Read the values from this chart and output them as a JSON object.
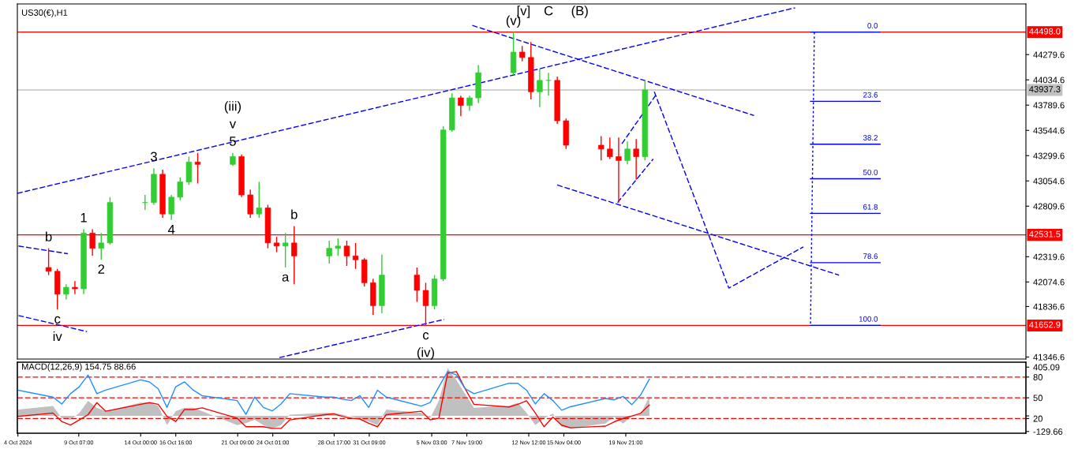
{
  "chart_data": [
    {
      "type": "candlestick",
      "title": "US30(€),H1",
      "x": [
        "2024-10-07T00:00",
        "2024-10-07T16:00",
        "2024-10-08T08:00",
        "2024-10-09T00:00",
        "2024-10-09T16:00",
        "2024-10-10T08:00",
        "2024-10-11T00:00",
        "2024-10-11T16:00",
        "2024-10-14T08:00",
        "2024-10-15T00:00",
        "2024-10-15T16:00",
        "2024-10-16T08:00",
        "2024-10-17T00:00",
        "2024-10-17T16:00",
        "2024-10-18T08:00",
        "2024-10-21T00:00",
        "2024-10-21T16:00",
        "2024-10-22T08:00",
        "2024-10-23T00:00",
        "2024-10-23T16:00",
        "2024-10-24T08:00",
        "2024-10-25T00:00",
        "2024-10-25T16:00",
        "2024-10-28T08:00",
        "2024-10-29T00:00",
        "2024-10-29T16:00",
        "2024-10-30T08:00",
        "2024-10-31T00:00",
        "2024-10-31T16:00",
        "2024-11-01T08:00",
        "2024-11-04T00:00",
        "2024-11-04T16:00",
        "2024-11-05T08:00",
        "2024-11-06T00:00",
        "2024-11-06T16:00",
        "2024-11-07T08:00",
        "2024-11-08T00:00",
        "2024-11-08T16:00",
        "2024-11-11T08:00",
        "2024-11-12T00:00",
        "2024-11-12T16:00",
        "2024-11-13T08:00",
        "2024-11-14T00:00",
        "2024-11-14T16:00",
        "2024-11-15T08:00",
        "2024-11-18T00:00",
        "2024-11-18T16:00",
        "2024-11-19T08:00",
        "2024-11-20T00:00",
        "2024-11-20T16:00",
        "2024-11-21T08:00"
      ],
      "ohlc": [
        [
          42215,
          42401,
          42141,
          42178
        ],
        [
          42178,
          42201,
          41808,
          41956
        ],
        [
          41956,
          42053,
          41904,
          42023
        ],
        [
          42023,
          42082,
          41956,
          42008
        ],
        [
          42008,
          42586,
          41956,
          42549
        ],
        [
          42549,
          42586,
          42327,
          42401
        ],
        [
          42401,
          42549,
          42290,
          42453
        ],
        [
          42453,
          42897,
          42438,
          42845
        ],
        [
          42845,
          42919,
          42771,
          42845
        ],
        [
          42845,
          43178,
          42823,
          43119
        ],
        [
          43119,
          43164,
          42697,
          42734
        ],
        [
          42734,
          42919,
          42675,
          42897
        ],
        [
          42897,
          43090,
          42867,
          43045
        ],
        [
          43045,
          43290,
          43016,
          43238
        ],
        [
          43238,
          43327,
          43030,
          43215
        ],
        [
          43215,
          43327,
          43200,
          43290
        ],
        [
          43290,
          43312,
          42897,
          42919
        ],
        [
          42919,
          42971,
          42697,
          42734
        ],
        [
          42734,
          43045,
          42697,
          42793
        ],
        [
          42793,
          42823,
          42401,
          42453
        ],
        [
          42453,
          42512,
          42364,
          42423
        ],
        [
          42423,
          42549,
          42215,
          42453
        ],
        [
          42453,
          42616,
          42053,
          42327
        ],
        [
          42327,
          42475,
          42253,
          42401
        ],
        [
          42401,
          42497,
          42327,
          42423
        ],
        [
          42423,
          42475,
          42230,
          42327
        ],
        [
          42327,
          42453,
          42201,
          42290
        ],
        [
          42290,
          42305,
          42030,
          42067
        ],
        [
          42067,
          42105,
          41756,
          41845
        ],
        [
          41845,
          42341,
          41771,
          42141
        ],
        [
          42141,
          42215,
          41882,
          41993
        ],
        [
          41993,
          42067,
          41652.9,
          41845
        ],
        [
          41845,
          42141,
          41808,
          42104
        ],
        [
          42104,
          43586,
          42082,
          43549
        ],
        [
          43549,
          43904,
          43534,
          43860
        ],
        [
          43860,
          43882,
          43682,
          43786
        ],
        [
          43786,
          43882,
          43734,
          43860
        ],
        [
          43860,
          44178,
          43808,
          44104
        ],
        [
          44104,
          44498,
          44082,
          44304
        ],
        [
          44304,
          44364,
          44215,
          44252
        ],
        [
          44252,
          44401,
          43845,
          43919
        ],
        [
          43919,
          44141,
          43771,
          44030
        ],
        [
          44030,
          44104,
          43882,
          44030
        ],
        [
          44030,
          44067,
          43608,
          43638
        ],
        [
          43638,
          43660,
          43364,
          43401
        ],
        [
          43401,
          43490,
          43253,
          43364
        ],
        [
          43364,
          43475,
          43267,
          43290
        ],
        [
          43290,
          43475,
          42845,
          43253
        ],
        [
          43253,
          43438,
          43215,
          43364
        ],
        [
          43364,
          43460,
          43067,
          43290
        ],
        [
          43290,
          44030,
          43253,
          43937.3
        ]
      ],
      "colors": [
        "#ff0000",
        "#ff0000",
        "#32cd32",
        "#ff0000",
        "#32cd32",
        "#ff0000",
        "#32cd32",
        "#32cd32",
        "#32cd32",
        "#32cd32",
        "#ff0000",
        "#32cd32",
        "#32cd32",
        "#32cd32",
        "#ff0000",
        "#32cd32",
        "#ff0000",
        "#ff0000",
        "#32cd32",
        "#ff0000",
        "#ff0000",
        "#32cd32",
        "#ff0000",
        "#32cd32",
        "#32cd32",
        "#ff0000",
        "#ff0000",
        "#ff0000",
        "#ff0000",
        "#32cd32",
        "#ff0000",
        "#ff0000",
        "#32cd32",
        "#32cd32",
        "#32cd32",
        "#ff0000",
        "#32cd32",
        "#32cd32",
        "#32cd32",
        "#ff0000",
        "#ff0000",
        "#32cd32",
        "#32cd32",
        "#ff0000",
        "#ff0000",
        "#ff0000",
        "#ff0000",
        "#ff0000",
        "#32cd32",
        "#ff0000",
        "#32cd32"
      ],
      "series": [
        {
          "type": "line",
          "color": "#0000ff",
          "line_style": "dashed",
          "x": [
            "2024-10-04T15:00",
            "2024-12-02T18:00"
          ],
          "values": [
            42934,
            44734
          ]
        },
        {
          "type": "line",
          "color": "#0000ff",
          "line_style": "dashed",
          "x": [
            "2024-10-04T17:00",
            "2024-10-08T11:00"
          ],
          "values": [
            42423,
            42349
          ]
        },
        {
          "type": "line",
          "color": "#0000ff",
          "line_style": "dashed",
          "x": [
            "2024-10-04T17:00",
            "2024-10-09T22:00"
          ],
          "values": [
            41749,
            41593
          ]
        },
        {
          "type": "line",
          "color": "#0000ff",
          "line_style": "dashed",
          "x": [
            "2024-10-24T13:00",
            "2024-11-06T02:00"
          ],
          "values": [
            41341,
            41712
          ]
        },
        {
          "type": "line",
          "color": "#0000ff",
          "line_style": "dashed",
          "x": [
            "2024-11-08T05:00",
            "2024-11-29T15:00"
          ],
          "values": [
            44563,
            43689
          ]
        },
        {
          "type": "line",
          "color": "#0000ff",
          "line_style": "dashed",
          "x": [
            "2024-11-14T16:00",
            "2024-12-06T02:00"
          ],
          "values": [
            43015,
            42141
          ]
        },
        {
          "type": "line",
          "color": "#0000ff",
          "line_style": "dashed",
          "x": [
            "2024-11-19T14:00",
            "2024-11-22T05:00"
          ],
          "values": [
            43415,
            43897
          ]
        },
        {
          "type": "line",
          "color": "#0000ff",
          "line_style": "dashed",
          "x": [
            "2024-11-19T06:00",
            "2024-11-21T23:00"
          ],
          "values": [
            42845,
            43267
          ]
        },
        {
          "type": "line",
          "color": "#0000ff",
          "line_style": "dashed",
          "x": [
            "2024-11-22T01:00",
            "2024-11-27T17:00",
            "2024-12-03T09:00"
          ],
          "values": [
            43919,
            42015,
            42415
          ]
        },
        {
          "type": "line",
          "color": "#0000ff",
          "line_style": "dotted",
          "x": [
            "2024-12-04T05:00",
            "2024-12-03T22:00"
          ],
          "values": [
            44498,
            41652.9
          ]
        },
        {
          "type": "line",
          "color": "#0000ff",
          "line_style": "solid",
          "x": [
            "2024-12-03T22:00",
            "2024-12-09T05:00"
          ],
          "values": [
            44498,
            44498
          ]
        },
        {
          "type": "line",
          "color": "#0000ff",
          "line_style": "solid",
          "x": [
            "2024-12-03T22:00",
            "2024-12-09T05:00"
          ],
          "values": [
            43827,
            43827
          ]
        },
        {
          "type": "line",
          "color": "#0000ff",
          "line_style": "solid",
          "x": [
            "2024-12-03T22:00",
            "2024-12-09T05:00"
          ],
          "values": [
            43411,
            43411
          ]
        },
        {
          "type": "line",
          "color": "#0000ff",
          "line_style": "solid",
          "x": [
            "2024-12-03T22:00",
            "2024-12-09T05:00"
          ],
          "values": [
            43076,
            43076
          ]
        },
        {
          "type": "line",
          "color": "#0000ff",
          "line_style": "solid",
          "x": [
            "2024-12-03T22:00",
            "2024-12-09T05:00"
          ],
          "values": [
            42740,
            42740
          ]
        },
        {
          "type": "line",
          "color": "#0000ff",
          "line_style": "solid",
          "x": [
            "2024-12-03T22:00",
            "2024-12-09T05:00"
          ],
          "values": [
            42262,
            42262
          ]
        },
        {
          "type": "line",
          "color": "#0000ff",
          "line_style": "solid",
          "x": [
            "2024-12-03T22:00",
            "2024-12-09T05:00"
          ],
          "values": [
            41652.9,
            41652.9
          ]
        }
      ],
      "ref_lines": [
        {
          "axis": "y",
          "value": 44498.0,
          "label": "44498.0",
          "color": "#ff0000"
        },
        {
          "axis": "y",
          "value": 43937.3,
          "label": "43937.3",
          "color": "#c0c0c0"
        },
        {
          "axis": "y",
          "value": 42531.5,
          "label": "42531.5",
          "color": "#ff0000"
        },
        {
          "axis": "y",
          "value": 41652.9,
          "label": "41652.9",
          "color": "#ff0000"
        }
      ],
      "annotations": [
        {
          "text": "b",
          "x": "2024-10-07T00:00",
          "y": 42401
        },
        {
          "text": "c",
          "x": "2024-10-07T16:00",
          "y": 41808
        },
        {
          "text": "iv",
          "x": "2024-10-07T16:00",
          "y": 41808
        },
        {
          "text": "1",
          "x": "2024-10-09T16:00",
          "y": 42586
        },
        {
          "text": "2",
          "x": "2024-10-11T00:00",
          "y": 42290
        },
        {
          "text": "3",
          "x": "2024-10-15T00:00",
          "y": 43178
        },
        {
          "text": "4",
          "x": "2024-10-16T08:00",
          "y": 42675
        },
        {
          "text": "5",
          "x": "2024-10-21T00:00",
          "y": 43327
        },
        {
          "text": "v",
          "x": "2024-10-21T00:00",
          "y": 43327
        },
        {
          "text": "(iii)",
          "x": "2024-10-21T00:00",
          "y": 43327
        },
        {
          "text": "a",
          "x": "2024-10-25T00:00",
          "y": 42215
        },
        {
          "text": "b",
          "x": "2024-10-25T16:00",
          "y": 42616
        },
        {
          "text": "c",
          "x": "2024-11-04T16:00",
          "y": 41652.9
        },
        {
          "text": "(iv)",
          "x": "2024-11-04T16:00",
          "y": 41652.9
        },
        {
          "text": "(v)",
          "x": "2024-11-11T08:00",
          "y": 44498
        },
        "[v]",
        "C",
        "(B)",
        {
          "text": "0.0",
          "x": "2024-12-09T05:00",
          "y": 44498
        },
        {
          "text": "23.6",
          "x": "2024-12-09T05:00",
          "y": 43827
        },
        {
          "text": "38.2",
          "x": "2024-12-09T05:00",
          "y": 43411
        },
        {
          "text": "50.0",
          "x": "2024-12-09T05:00",
          "y": 43076
        },
        {
          "text": "61.8",
          "x": "2024-12-09T05:00",
          "y": 42740
        },
        {
          "text": "78.6",
          "x": "2024-12-09T05:00",
          "y": 42262
        },
        {
          "text": "100.0",
          "x": "2024-12-09T05:00",
          "y": 41652.9
        }
      ],
      "xlim": [
        "2024-10-04T15:00",
        "2024-12-20T07:00"
      ],
      "ylim": [
        41327,
        44771
      ],
      "yticks": [
        44279.6,
        44034.6,
        43789.6,
        43544.6,
        43299.6,
        43054.6,
        42809.6,
        42319.6,
        42074.6,
        41836.6,
        41346.6
      ],
      "tick_labels": "y"
    },
    {
      "type": "line",
      "title": "MACD(12,26,9) 154.75 88.66",
      "x": [
        "2024-10-04T16:00",
        "2024-10-07T08:00",
        "2024-10-08T00:00",
        "2024-10-08T16:00",
        "2024-10-09T08:00",
        "2024-10-10T00:00",
        "2024-10-10T16:00",
        "2024-10-11T08:00",
        "2024-10-14T00:00",
        "2024-10-14T16:00",
        "2024-10-15T08:00",
        "2024-10-16T00:00",
        "2024-10-16T16:00",
        "2024-10-17T08:00",
        "2024-10-18T00:00",
        "2024-10-18T16:00",
        "2024-10-21T08:00",
        "2024-10-22T00:00",
        "2024-10-22T16:00",
        "2024-10-23T08:00",
        "2024-10-24T00:00",
        "2024-10-24T16:00",
        "2024-10-25T08:00",
        "2024-10-28T00:00",
        "2024-10-28T16:00",
        "2024-10-29T08:00",
        "2024-10-30T00:00",
        "2024-10-30T16:00",
        "2024-10-31T08:00",
        "2024-11-01T00:00",
        "2024-11-01T16:00",
        "2024-11-04T08:00",
        "2024-11-05T00:00",
        "2024-11-05T16:00",
        "2024-11-06T08:00",
        "2024-11-07T00:00",
        "2024-11-07T16:00",
        "2024-11-08T08:00",
        "2024-11-11T00:00",
        "2024-11-11T16:00",
        "2024-11-12T08:00",
        "2024-11-13T00:00",
        "2024-11-13T16:00",
        "2024-11-14T08:00",
        "2024-11-15T00:00",
        "2024-11-15T16:00",
        "2024-11-18T08:00",
        "2024-11-19T00:00",
        "2024-11-19T16:00",
        "2024-11-20T08:00",
        "2024-11-21T00:00",
        "2024-11-21T16:00"
      ],
      "series": [
        {
          "type": "area",
          "color": "#c0c0c0",
          "values": [
            53,
            82,
            -19,
            -33,
            24,
            125,
            67,
            39,
            110,
            110,
            82,
            -76,
            39,
            67,
            67,
            39,
            -76,
            -61,
            -33,
            -76,
            -104,
            -76,
            10,
            24,
            24,
            10,
            -4,
            -19,
            -47,
            -76,
            53,
            24,
            -19,
            125,
            397,
            297,
            182,
            67,
            82,
            110,
            24,
            -76,
            -19,
            20,
            -91,
            -105,
            -63,
            -7,
            -63,
            -7,
            15,
            161
          ]
        },
        {
          "type": "line",
          "color": "#ff0000",
          "values": [
            -4,
            24,
            -47,
            -76,
            -33,
            10,
            110,
            39,
            96,
            110,
            96,
            -4,
            -47,
            53,
            53,
            67,
            -19,
            -90,
            -90,
            -90,
            -104,
            -104,
            -33,
            10,
            17,
            -4,
            -19,
            -26,
            -61,
            -90,
            10,
            39,
            -33,
            -19,
            354,
            368,
            225,
            96,
            74,
            96,
            125,
            24,
            -90,
            -10,
            -77,
            -99,
            -85,
            -49,
            -21,
            -1,
            21,
            91
          ]
        },
        {
          "type": "line",
          "axis": "y2",
          "color": "#1e90ff",
          "values": [
            61,
            51,
            41,
            56,
            66,
            83,
            56,
            61,
            76,
            73,
            63,
            36,
            66,
            73,
            61,
            53,
            46,
            26,
            51,
            36,
            31,
            41,
            56,
            51,
            51,
            48,
            46,
            53,
            36,
            61,
            51,
            38,
            43,
            66,
            88,
            83,
            63,
            56,
            71,
            71,
            61,
            41,
            56,
            46,
            32,
            37,
            49,
            47,
            52,
            40,
            54,
            77
          ]
        }
      ],
      "ref_lines": [
        {
          "axis": "y2",
          "value": 80,
          "color": "#ff0000",
          "line_style": "dashed"
        },
        {
          "axis": "y2",
          "value": 50,
          "color": "#ff0000",
          "line_style": "dashed"
        },
        {
          "axis": "y2",
          "value": 20,
          "color": "#ff0000",
          "line_style": "dashed"
        }
      ],
      "xlim": [
        "2024-10-04T15:00",
        "2024-12-20T07:00"
      ],
      "xticks": [
        {
          "value": "2024-10-04T16:00",
          "label": "4 Oct 2024"
        },
        {
          "value": "2024-10-09T07:00",
          "label": "9 Oct 07:00"
        },
        {
          "value": "2024-10-14T00:00",
          "label": "14 Oct 00:00"
        },
        {
          "value": "2024-10-16T16:00",
          "label": "16 Oct 16:00"
        },
        {
          "value": "2024-10-21T09:00",
          "label": "21 Oct 09:00"
        },
        {
          "value": "2024-10-24T01:00",
          "label": "24 Oct 01:00"
        },
        {
          "value": "2024-10-28T17:00",
          "label": "28 Oct 17:00"
        },
        {
          "value": "2024-10-31T09:00",
          "label": "31 Oct 09:00"
        },
        {
          "value": "2024-11-05T03:00",
          "label": "5 Nov 03:00"
        },
        {
          "value": "2024-11-07T19:00",
          "label": "7 Nov 19:00"
        },
        {
          "value": "2024-11-12T12:00",
          "label": "12 Nov 12:00"
        },
        {
          "value": "2024-11-15T04:00",
          "label": "15 Nov 04:00"
        },
        {
          "value": "2024-11-19T21:00",
          "label": "19 Nov 21:00"
        }
      ],
      "ylim": [
        -144,
        446
      ],
      "yticks": [
        405.09,
        {
          "value": 0,
          "label": null
        },
        -129.66
      ],
      "y2lim": [
        -1.3,
        101.5
      ],
      "y2ticks": [
        80,
        50,
        20
      ]
    }
  ]
}
